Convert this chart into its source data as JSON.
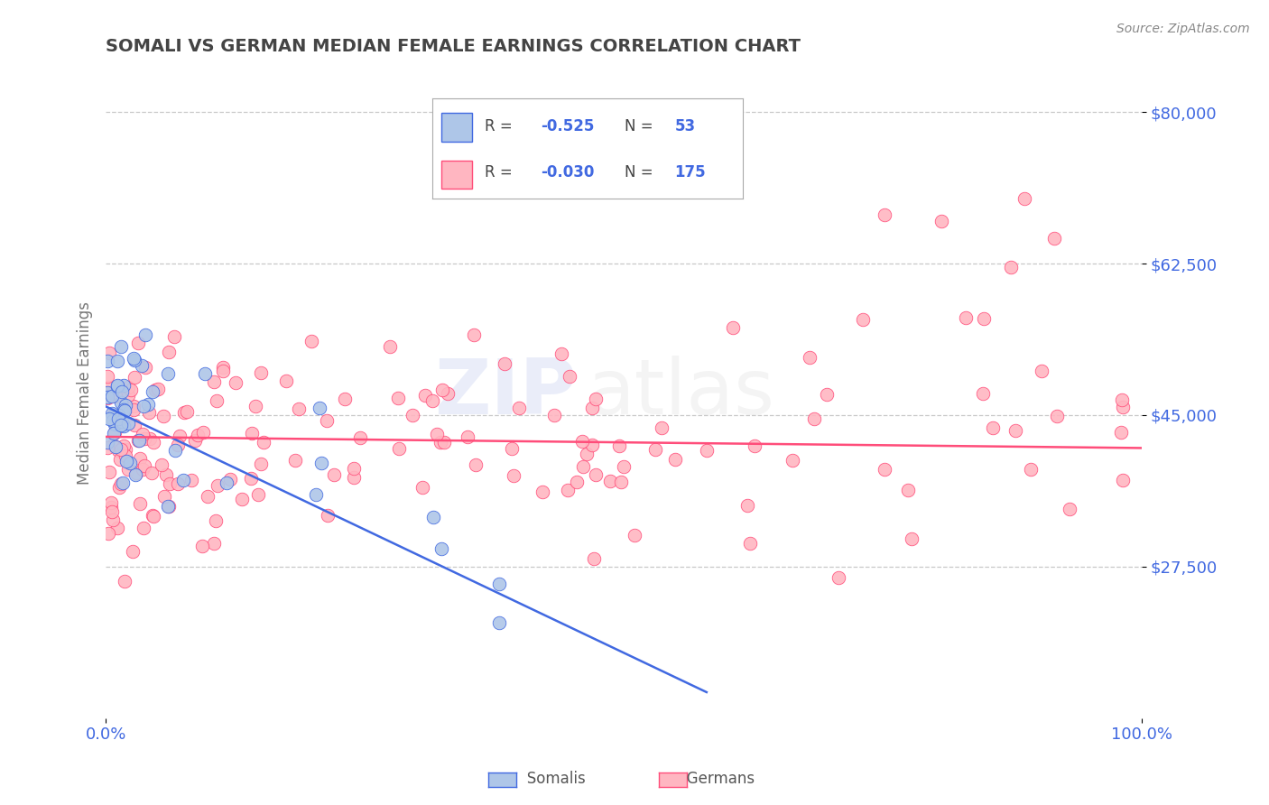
{
  "title": "SOMALI VS GERMAN MEDIAN FEMALE EARNINGS CORRELATION CHART",
  "source_text": "Source: ZipAtlas.com",
  "ylabel": "Median Female Earnings",
  "xlim": [
    0,
    1.0
  ],
  "ylim": [
    10000,
    85000
  ],
  "yticks": [
    27500,
    45000,
    62500,
    80000
  ],
  "ytick_labels": [
    "$27,500",
    "$45,000",
    "$62,500",
    "$80,000"
  ],
  "xtick_labels": [
    "0.0%",
    "100.0%"
  ],
  "background_color": "#ffffff",
  "grid_color": "#c8c8c8",
  "title_color": "#444444",
  "tick_label_color": "#4169e1",
  "somali_color": "#aec6e8",
  "somali_line_color": "#4169e1",
  "german_color": "#ffb6c1",
  "german_line_color": "#ff4d7a",
  "R_somali": -0.525,
  "N_somali": 53,
  "R_german": -0.03,
  "N_german": 175,
  "legend_label_somali": "Somalis",
  "legend_label_german": "Germans"
}
